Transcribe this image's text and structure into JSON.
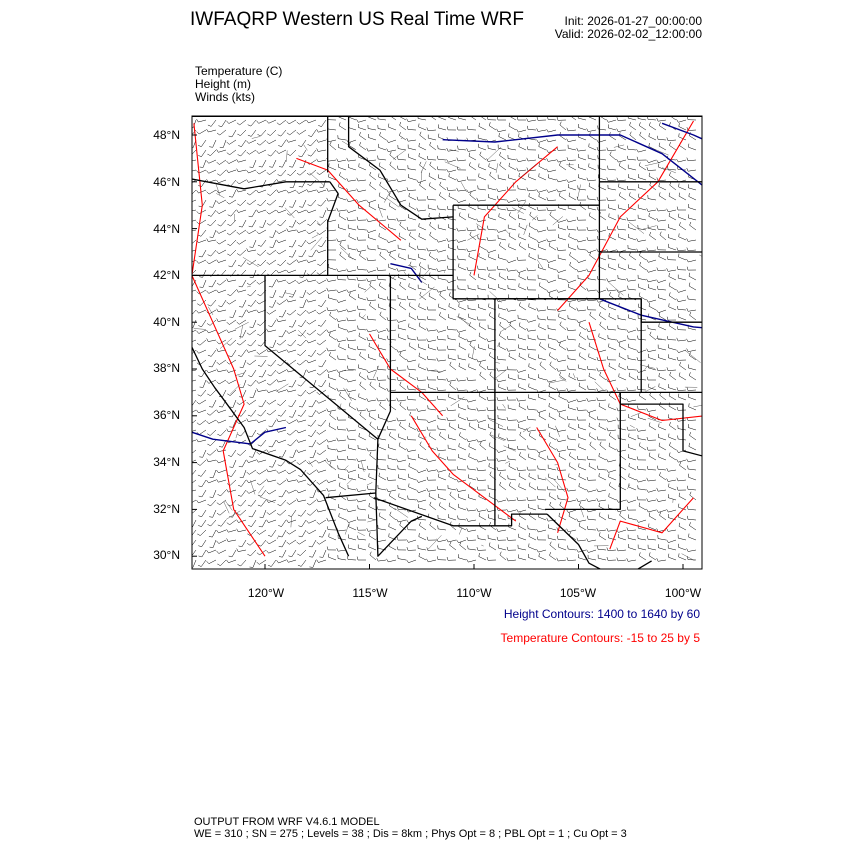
{
  "header": {
    "title": "IWFAQRP Western US Real Time WRF",
    "init": "Init: 2026-01-27_00:00:00",
    "valid": "Valid: 2026-02-02_12:00:00"
  },
  "fields": [
    "Temperature   (C)",
    "Height   (m)",
    "Winds   (kts)"
  ],
  "map": {
    "lat_labels": [
      "48°N",
      "46°N",
      "44°N",
      "42°N",
      "40°N",
      "38°N",
      "36°N",
      "34°N",
      "32°N",
      "30°N"
    ],
    "lon_labels": [
      "120°W",
      "115°W",
      "110°W",
      "105°W",
      "100°W"
    ],
    "colors": {
      "height": "#00008b",
      "temperature": "#ff0000",
      "borders": "#000000"
    }
  },
  "legend": {
    "height": "Height Contours: 1400 to 1640 by 60",
    "temperature": "Temperature Contours: -15 to 25 by 5"
  },
  "footer": {
    "line1": "OUTPUT FROM WRF V4.6.1 MODEL",
    "line2": "WE = 310 ; SN = 275 ; Levels = 38 ; Dis = 8km ; Phys Opt = 8 ; PBL Opt = 1 ; Cu Opt = 3"
  }
}
